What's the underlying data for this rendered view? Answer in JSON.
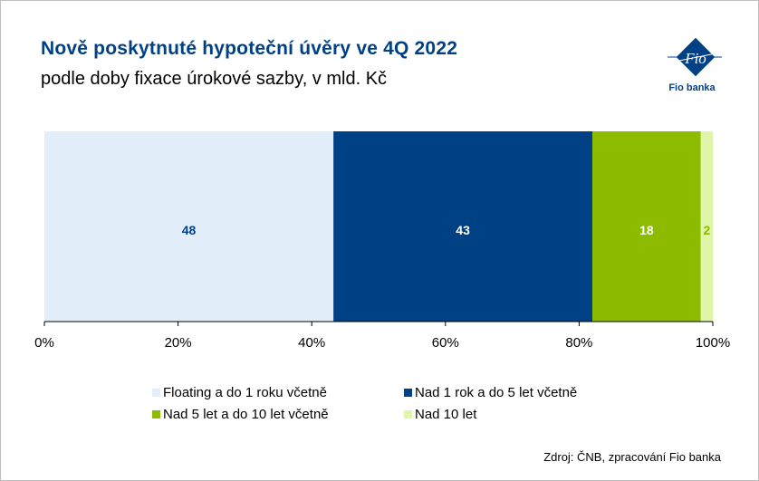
{
  "header": {
    "title": "Nově poskytnuté hypoteční úvěry ve 4Q 2022",
    "subtitle": "podle doby fixace úrokové sazby, v mld. Kč"
  },
  "logo": {
    "icon": "fio-banka-logo-icon",
    "text": "Fio",
    "caption": "Fio banka"
  },
  "source": "Zdroj: ČNB, zpracování Fio banka",
  "chart_data": {
    "type": "bar",
    "orientation": "horizontal",
    "stacked": "100%",
    "categories": [
      ""
    ],
    "series": [
      {
        "name": "Floating a do 1 roku včetně",
        "values": [
          48
        ],
        "color": "#e3eefb",
        "label": "48",
        "label_color": "#004186"
      },
      {
        "name": "Nad 1 rok a do 5 let včetně",
        "values": [
          43
        ],
        "color": "#004186",
        "label": "43",
        "label_color": "#ffffff"
      },
      {
        "name": "Nad 5 let a do 10 let včetně",
        "values": [
          18
        ],
        "color": "#8dbb00",
        "label": "18",
        "label_color": "#ffffff"
      },
      {
        "name": "Nad 10 let",
        "values": [
          2
        ],
        "color": "#dff5a8",
        "label": "2",
        "label_color": "#8dbb00"
      }
    ],
    "xlim": [
      0,
      100
    ],
    "xticks": [
      "0%",
      "20%",
      "40%",
      "60%",
      "80%",
      "100%"
    ],
    "grid": false,
    "legend_position": "bottom"
  }
}
